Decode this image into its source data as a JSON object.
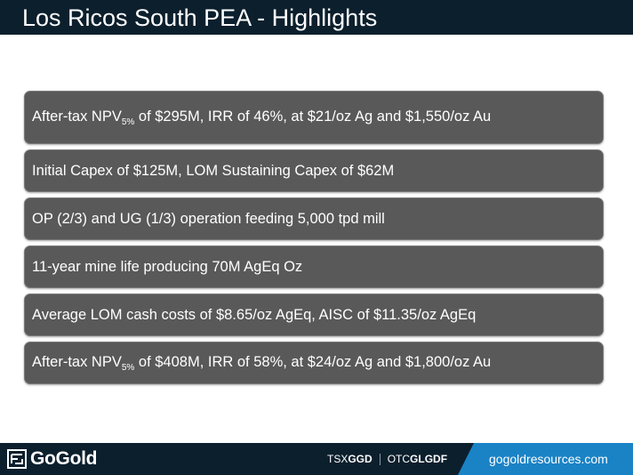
{
  "slide": {
    "title": "Los Ricos South PEA - Highlights"
  },
  "bullets": [
    {
      "pre": "After-tax NPV",
      "sub": "5%",
      "post": " of $295M, IRR of 46%, at $21/oz Ag and $1,550/oz Au"
    },
    {
      "text": "Initial Capex of $125M, LOM Sustaining Capex of $62M"
    },
    {
      "text": "OP (2/3) and UG (1/3) operation feeding 5,000 tpd mill"
    },
    {
      "text": "11-year mine life producing 70M AgEq Oz"
    },
    {
      "text": "Average LOM cash costs of $8.65/oz AgEq, AISC of $11.35/oz AgEq"
    },
    {
      "pre": "After-tax NPV",
      "sub": "5%",
      "post": " of $408M, IRR of 58%, at $24/oz Ag and $1,800/oz Au"
    }
  ],
  "footer": {
    "logo_text": "GoGold",
    "logo_icon": "gogold-logo-icon",
    "tsx_prefix": "TSX",
    "tsx_symbol": "GGD",
    "otc_prefix": "OTC",
    "otc_symbol": "GLGDF",
    "url": "gogoldresources.com"
  },
  "colors": {
    "header_bg": "#0c1f2d",
    "bullet_bg": "#595959",
    "url_band": "#1a83c6"
  }
}
